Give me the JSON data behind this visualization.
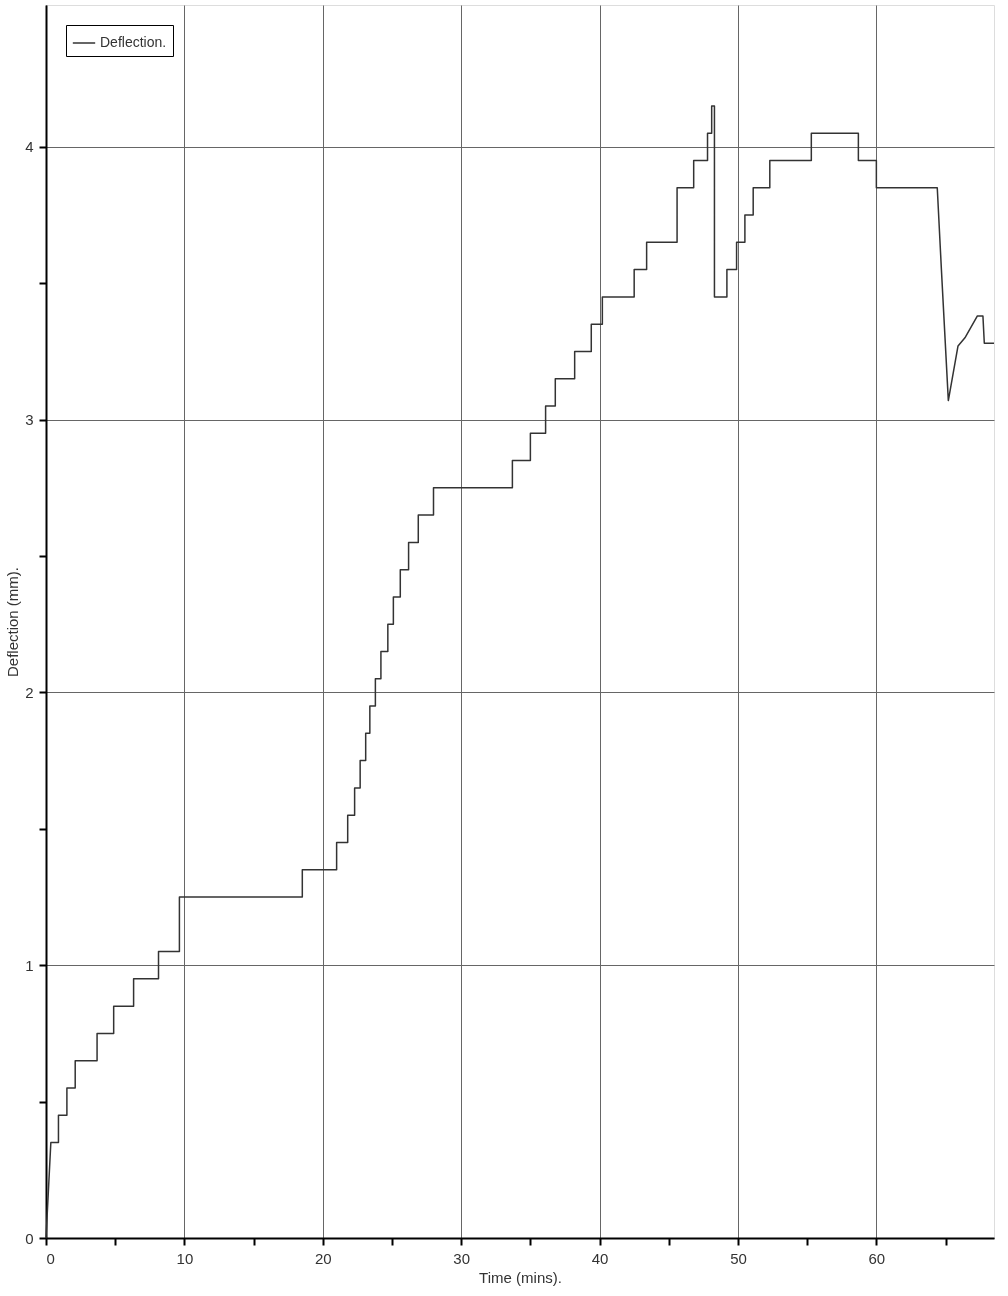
{
  "chart_data": {
    "type": "line",
    "xlabel": "Time (mins).",
    "ylabel": "Deflection (mm).",
    "xlim": [
      0,
      68.5
    ],
    "ylim": [
      0,
      4.52
    ],
    "xticks": [
      0,
      {
        "value": 5,
        "label": null
      },
      10,
      {
        "value": 15,
        "label": null
      },
      20,
      {
        "value": 25,
        "label": null
      },
      30,
      {
        "value": 35,
        "label": null
      },
      40,
      {
        "value": 45,
        "label": null
      },
      50,
      {
        "value": 55,
        "label": null
      },
      60,
      {
        "value": 65,
        "label": null
      }
    ],
    "yticks": [
      0,
      {
        "value": 0.5,
        "label": null
      },
      1,
      {
        "value": 1.5,
        "label": null
      },
      2,
      {
        "value": 2.5,
        "label": null
      },
      3,
      {
        "value": 3.5,
        "label": null
      },
      4
    ],
    "grid": true,
    "legend": "top left",
    "marker": "none",
    "line_style": "solid",
    "series": [
      {
        "name": "Deflection.",
        "color": "#333333",
        "x": [
          0,
          0.35,
          0.9,
          0.9,
          1.51,
          1.51,
          2.11,
          2.11,
          3.69,
          3.69,
          4.89,
          4.89,
          6.33,
          6.33,
          8.13,
          8.13,
          9.64,
          9.64,
          18.52,
          18.52,
          21.0,
          21.0,
          21.8,
          21.8,
          22.3,
          22.3,
          22.7,
          22.7,
          23.1,
          23.1,
          23.4,
          23.4,
          23.8,
          23.8,
          24.2,
          24.2,
          24.7,
          24.7,
          25.1,
          25.1,
          25.6,
          25.6,
          26.2,
          26.2,
          26.9,
          26.9,
          28.0,
          28.0,
          33.7,
          33.7,
          35.0,
          35.0,
          36.1,
          36.1,
          36.8,
          36.8,
          38.2,
          38.2,
          39.4,
          39.4,
          40.2,
          40.2,
          42.5,
          42.5,
          43.4,
          43.4,
          45.6,
          45.6,
          46.8,
          46.8,
          47.8,
          47.8,
          48.1,
          48.1,
          48.3,
          48.3,
          49.2,
          49.2,
          49.9,
          49.9,
          50.5,
          50.5,
          51.1,
          51.1,
          52.3,
          52.3,
          55.3,
          55.3,
          58.7,
          58.7,
          60.0,
          60.0,
          64.4,
          64.7,
          65.2,
          65.9,
          66.4,
          67.3,
          67.7,
          67.8,
          68.5
        ],
        "values": [
          0,
          0.35,
          0.35,
          0.45,
          0.45,
          0.55,
          0.55,
          0.65,
          0.65,
          0.75,
          0.75,
          0.85,
          0.85,
          0.95,
          0.95,
          1.05,
          1.05,
          1.25,
          1.25,
          1.35,
          1.35,
          1.45,
          1.45,
          1.55,
          1.55,
          1.65,
          1.65,
          1.75,
          1.75,
          1.85,
          1.85,
          1.95,
          1.95,
          2.05,
          2.05,
          2.15,
          2.15,
          2.25,
          2.25,
          2.35,
          2.35,
          2.45,
          2.45,
          2.55,
          2.55,
          2.65,
          2.65,
          2.75,
          2.75,
          2.85,
          2.85,
          2.95,
          2.95,
          3.05,
          3.05,
          3.15,
          3.15,
          3.25,
          3.25,
          3.35,
          3.35,
          3.45,
          3.45,
          3.55,
          3.55,
          3.65,
          3.65,
          3.85,
          3.85,
          3.95,
          3.95,
          4.05,
          4.05,
          4.15,
          4.15,
          3.45,
          3.45,
          3.55,
          3.55,
          3.65,
          3.65,
          3.75,
          3.75,
          3.85,
          3.85,
          3.95,
          3.95,
          4.05,
          4.05,
          3.95,
          3.95,
          3.85,
          3.85,
          3.55,
          3.07,
          3.27,
          3.3,
          3.38,
          3.38,
          3.28,
          3.28
        ]
      }
    ]
  }
}
